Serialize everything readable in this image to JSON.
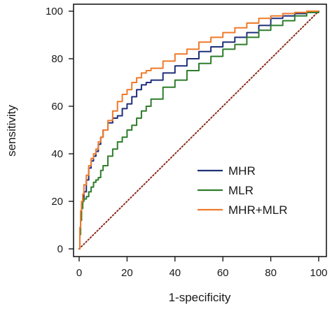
{
  "chart_data": {
    "type": "line",
    "title": "",
    "xlabel": "1-specificity",
    "ylabel": "sensitivity",
    "xlim": [
      0,
      100
    ],
    "ylim": [
      0,
      100
    ],
    "x_ticks": [
      "0",
      "20",
      "40",
      "60",
      "80",
      "100"
    ],
    "y_ticks": [
      "0",
      "20",
      "40",
      "60",
      "80",
      "100"
    ],
    "grid": false,
    "legend_position": "bottom-right",
    "reference_line": {
      "name": "",
      "style": "dotted",
      "color": "#8b2a1a",
      "x": [
        0,
        100
      ],
      "y": [
        0,
        100
      ]
    },
    "series": [
      {
        "name": "MHR",
        "color": "#1f2f7a",
        "x": [
          0,
          0.3,
          0.6,
          1,
          1.5,
          2,
          3,
          4,
          5,
          6,
          7,
          8,
          9,
          10,
          12,
          14,
          16,
          18,
          20,
          22,
          24,
          26,
          28,
          30,
          35,
          40,
          45,
          50,
          55,
          60,
          65,
          70,
          75,
          80,
          85,
          90,
          95,
          100
        ],
        "y": [
          0,
          8,
          15,
          19,
          21,
          24,
          29,
          34,
          37,
          39,
          41,
          44,
          47,
          50,
          53,
          55,
          56,
          59,
          61,
          64,
          67,
          69,
          70,
          71,
          74,
          77,
          80,
          83,
          85,
          87,
          89,
          91,
          94,
          97,
          98,
          99,
          99.5,
          100
        ]
      },
      {
        "name": "MLR",
        "color": "#2e7d2a",
        "x": [
          0,
          0.3,
          0.6,
          1,
          1.5,
          2,
          3,
          4,
          5,
          6,
          7,
          8,
          9,
          10,
          12,
          14,
          16,
          18,
          20,
          22,
          24,
          26,
          28,
          30,
          35,
          40,
          45,
          50,
          55,
          60,
          65,
          70,
          75,
          80,
          85,
          90,
          95,
          100
        ],
        "y": [
          0,
          6,
          12,
          17,
          20,
          21,
          22,
          24,
          26,
          28,
          29,
          30,
          33,
          35,
          39,
          42,
          45,
          47,
          50,
          52,
          55,
          58,
          60,
          63,
          68,
          71,
          75,
          78,
          81,
          84,
          86,
          89,
          92,
          94,
          96,
          98,
          99.5,
          100
        ]
      },
      {
        "name": "MHR+MLR",
        "color": "#f07a2a",
        "x": [
          0,
          0.3,
          0.6,
          1,
          1.5,
          2,
          3,
          4,
          5,
          6,
          7,
          8,
          9,
          10,
          12,
          14,
          16,
          18,
          20,
          22,
          24,
          26,
          28,
          30,
          35,
          40,
          45,
          50,
          55,
          60,
          65,
          70,
          75,
          80,
          85,
          90,
          95,
          100
        ],
        "y": [
          0,
          9,
          16,
          20,
          23,
          27,
          31,
          35,
          38,
          40,
          42,
          45,
          47,
          50,
          54,
          58,
          62,
          65,
          67,
          70,
          72,
          74,
          75,
          76,
          79,
          82,
          84,
          87,
          89,
          91,
          93,
          95,
          97,
          98,
          99,
          99.5,
          100,
          100
        ]
      }
    ]
  }
}
